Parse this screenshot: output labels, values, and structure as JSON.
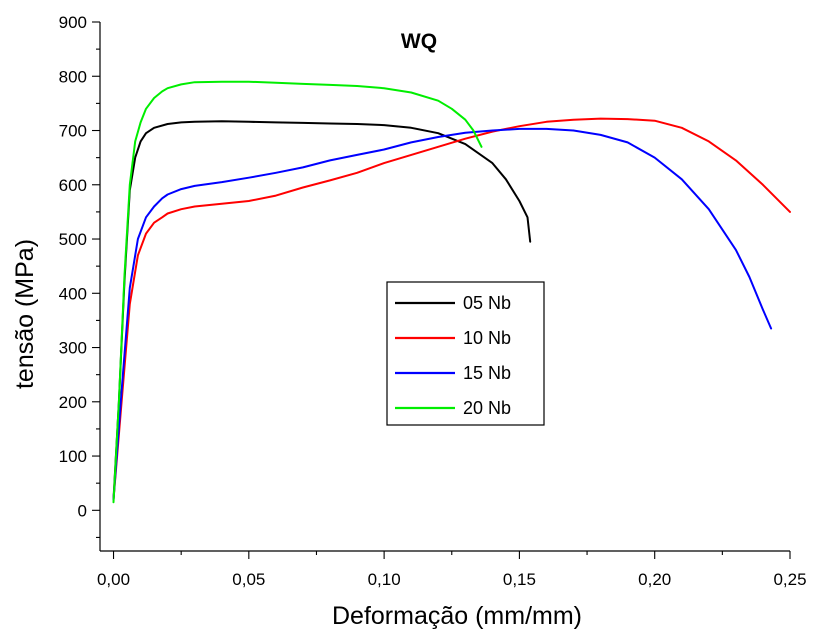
{
  "chart_data": {
    "type": "line",
    "title": "WQ",
    "xlabel": "Deformação (mm/mm)",
    "ylabel": "tensão (MPa)",
    "xlim": [
      -0.005,
      0.25
    ],
    "ylim": [
      -75,
      900
    ],
    "x_ticks": [
      0.0,
      0.05,
      0.1,
      0.15,
      0.2,
      0.25
    ],
    "x_tick_labels": [
      "0,00",
      "0,05",
      "0,10",
      "0,15",
      "0,20",
      "0,25"
    ],
    "y_ticks": [
      0,
      100,
      200,
      300,
      400,
      500,
      600,
      700,
      800,
      900
    ],
    "y_tick_labels": [
      "0",
      "100",
      "200",
      "300",
      "400",
      "500",
      "600",
      "700",
      "800",
      "900"
    ],
    "grid": false,
    "legend_position": "center",
    "series": [
      {
        "name": "05 Nb",
        "color": "#000000",
        "x": [
          0.0,
          0.002,
          0.004,
          0.006,
          0.008,
          0.01,
          0.012,
          0.015,
          0.02,
          0.025,
          0.03,
          0.04,
          0.05,
          0.06,
          0.07,
          0.08,
          0.09,
          0.1,
          0.11,
          0.12,
          0.13,
          0.14,
          0.145,
          0.15,
          0.153,
          0.154
        ],
        "y": [
          20,
          200,
          420,
          590,
          650,
          680,
          695,
          705,
          712,
          715,
          716,
          717,
          716,
          715,
          714,
          713,
          712,
          710,
          705,
          695,
          675,
          640,
          610,
          570,
          540,
          495
        ]
      },
      {
        "name": "10 Nb",
        "color": "#ff0000",
        "x": [
          0.0,
          0.003,
          0.006,
          0.009,
          0.012,
          0.015,
          0.018,
          0.02,
          0.025,
          0.03,
          0.04,
          0.05,
          0.06,
          0.07,
          0.08,
          0.09,
          0.1,
          0.11,
          0.12,
          0.13,
          0.14,
          0.15,
          0.16,
          0.17,
          0.18,
          0.19,
          0.2,
          0.21,
          0.22,
          0.23,
          0.24,
          0.25
        ],
        "y": [
          20,
          200,
          380,
          470,
          510,
          530,
          540,
          547,
          555,
          560,
          565,
          570,
          580,
          595,
          608,
          622,
          640,
          655,
          670,
          685,
          698,
          708,
          716,
          720,
          722,
          721,
          718,
          705,
          680,
          645,
          600,
          550
        ]
      },
      {
        "name": "15 Nb",
        "color": "#0000ff",
        "x": [
          0.0,
          0.003,
          0.006,
          0.009,
          0.012,
          0.015,
          0.018,
          0.02,
          0.025,
          0.03,
          0.04,
          0.05,
          0.06,
          0.07,
          0.08,
          0.09,
          0.1,
          0.11,
          0.12,
          0.13,
          0.14,
          0.15,
          0.16,
          0.17,
          0.18,
          0.19,
          0.2,
          0.21,
          0.22,
          0.23,
          0.235,
          0.24,
          0.243
        ],
        "y": [
          20,
          220,
          410,
          500,
          540,
          560,
          575,
          582,
          592,
          598,
          605,
          613,
          622,
          632,
          645,
          655,
          665,
          678,
          688,
          696,
          700,
          703,
          703,
          700,
          692,
          678,
          650,
          610,
          555,
          480,
          430,
          370,
          335
        ]
      },
      {
        "name": "20 Nb",
        "color": "#00ee00",
        "x": [
          0.0,
          0.002,
          0.004,
          0.006,
          0.008,
          0.01,
          0.012,
          0.015,
          0.018,
          0.02,
          0.025,
          0.03,
          0.04,
          0.05,
          0.06,
          0.07,
          0.08,
          0.09,
          0.1,
          0.11,
          0.12,
          0.125,
          0.13,
          0.133,
          0.136
        ],
        "y": [
          15,
          200,
          430,
          600,
          680,
          715,
          740,
          760,
          772,
          778,
          785,
          789,
          790,
          790,
          788,
          786,
          784,
          782,
          778,
          770,
          755,
          740,
          720,
          700,
          670
        ]
      }
    ]
  }
}
